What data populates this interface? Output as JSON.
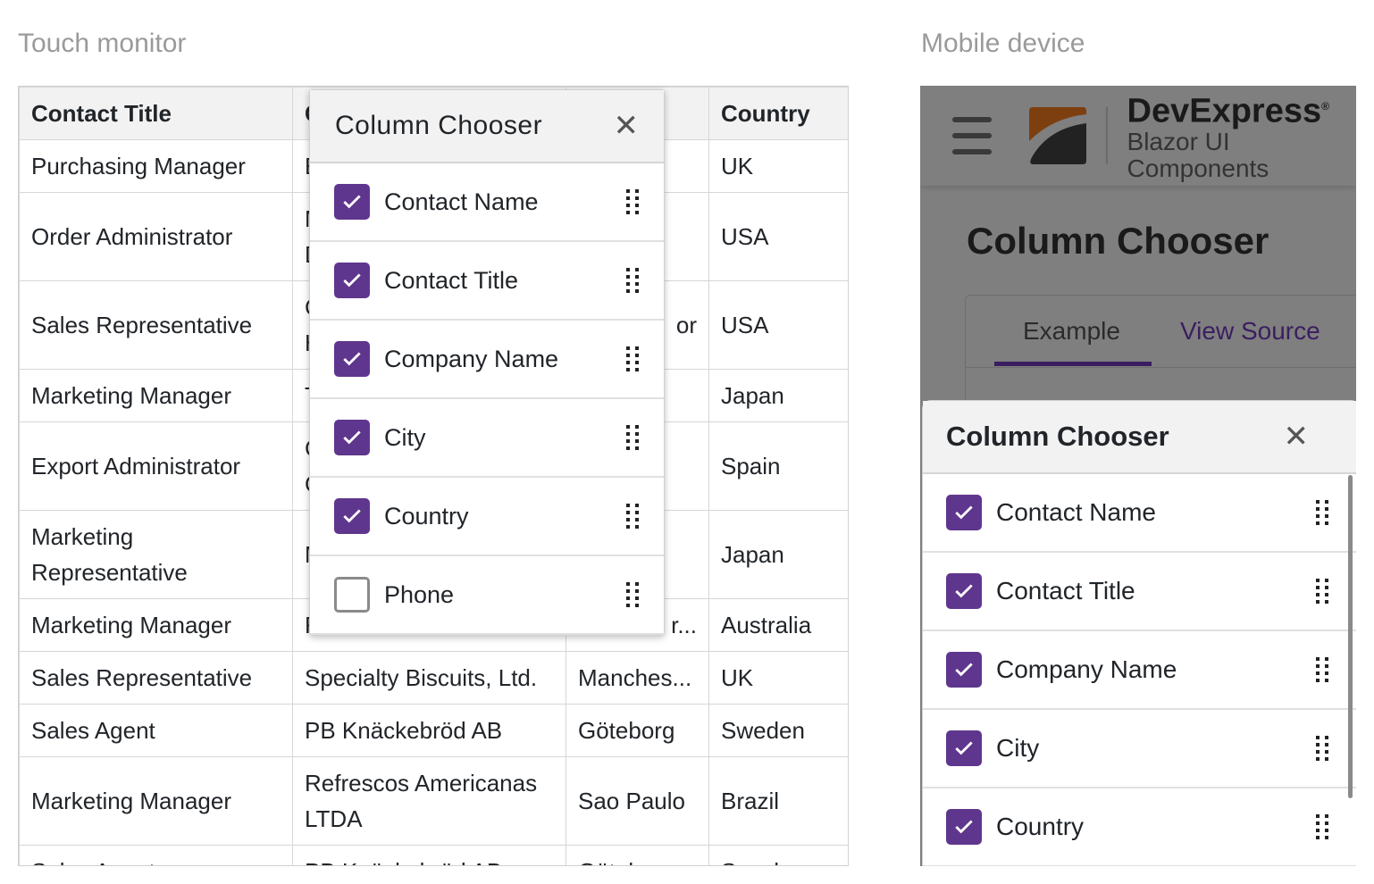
{
  "labels": {
    "touch": "Touch monitor",
    "mobile": "Mobile device"
  },
  "colors": {
    "accent": "#5f368d",
    "overlay": "#7f7f7f"
  },
  "grid": {
    "headers": [
      "Contact Title",
      "C",
      "",
      "Country"
    ],
    "rows": [
      [
        "Purchasing Manager",
        "E",
        "",
        "UK"
      ],
      [
        "Order Administrator",
        "M\nD",
        "",
        "USA"
      ],
      [
        "Sales Representative",
        "C\nH",
        "or",
        "USA"
      ],
      [
        "Marketing Manager",
        "T",
        "",
        "Japan"
      ],
      [
        "Export Administrator",
        "C\nC",
        "",
        "Spain"
      ],
      [
        "Marketing Representative",
        "M",
        "",
        "Japan"
      ],
      [
        "Marketing Manager",
        "F",
        "r...",
        "Australia"
      ],
      [
        "Sales Representative",
        "Specialty Biscuits, Ltd.",
        "Manches...",
        "UK"
      ],
      [
        "Sales Agent",
        "PB Knäckebröd AB",
        "Göteborg",
        "Sweden"
      ],
      [
        "Marketing Manager",
        "Refrescos Americanas LTDA",
        "Sao Paulo",
        "Brazil"
      ],
      [
        "Sales Agent",
        "PB Knäckebröd AB",
        "Göteborg",
        "Sweden"
      ]
    ]
  },
  "touch_chooser": {
    "title": "Column Chooser",
    "close_icon": "close-icon",
    "items": [
      {
        "label": "Contact Name",
        "checked": true
      },
      {
        "label": "Contact Title",
        "checked": true
      },
      {
        "label": "Company Name",
        "checked": true
      },
      {
        "label": "City",
        "checked": true
      },
      {
        "label": "Country",
        "checked": true
      },
      {
        "label": "Phone",
        "checked": false
      }
    ]
  },
  "mobile": {
    "brand": "DevExpress",
    "brand_mark": "®",
    "subtitle": "Blazor UI Components",
    "page_title": "Column Chooser",
    "tabs": [
      {
        "label": "Example",
        "active": true
      },
      {
        "label": "View Source",
        "active": false
      }
    ],
    "chooser": {
      "title": "Column Chooser",
      "items": [
        {
          "label": "Contact Name",
          "checked": true
        },
        {
          "label": "Contact Title",
          "checked": true
        },
        {
          "label": "Company Name",
          "checked": true
        },
        {
          "label": "City",
          "checked": true
        },
        {
          "label": "Country",
          "checked": true
        }
      ]
    }
  }
}
